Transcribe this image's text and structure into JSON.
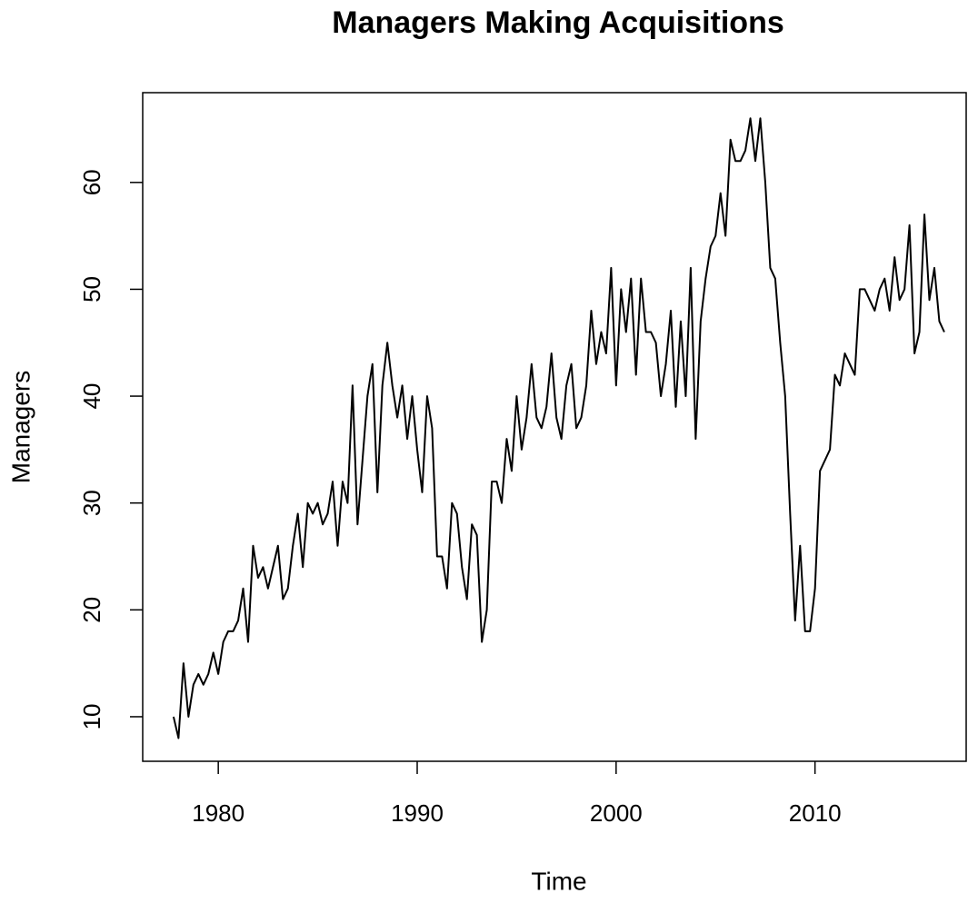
{
  "chart_data": {
    "type": "line",
    "title": "Managers Making Acquisitions",
    "x_label": "Time",
    "y_label": "Managers",
    "x": [
      1977.75,
      1978,
      1978.25,
      1978.5,
      1978.75,
      1979,
      1979.25,
      1979.5,
      1979.75,
      1980,
      1980.25,
      1980.5,
      1980.75,
      1981,
      1981.25,
      1981.5,
      1981.75,
      1982,
      1982.25,
      1982.5,
      1982.75,
      1983,
      1983.25,
      1983.5,
      1983.75,
      1984,
      1984.25,
      1984.5,
      1984.75,
      1985,
      1985.25,
      1985.5,
      1985.75,
      1986,
      1986.25,
      1986.5,
      1986.75,
      1987,
      1987.25,
      1987.5,
      1987.75,
      1988,
      1988.25,
      1988.5,
      1988.75,
      1989,
      1989.25,
      1989.5,
      1989.75,
      1990,
      1990.25,
      1990.5,
      1990.75,
      1991,
      1991.25,
      1991.5,
      1991.75,
      1992,
      1992.25,
      1992.5,
      1992.75,
      1993,
      1993.25,
      1993.5,
      1993.75,
      1994,
      1994.25,
      1994.5,
      1994.75,
      1995,
      1995.25,
      1995.5,
      1995.75,
      1996,
      1996.25,
      1996.5,
      1996.75,
      1997,
      1997.25,
      1997.5,
      1997.75,
      1998,
      1998.25,
      1998.5,
      1998.75,
      1999,
      1999.25,
      1999.5,
      1999.75,
      2000,
      2000.25,
      2000.5,
      2000.75,
      2001,
      2001.25,
      2001.5,
      2001.75,
      2002,
      2002.25,
      2002.5,
      2002.75,
      2003,
      2003.25,
      2003.5,
      2003.75,
      2004,
      2004.25,
      2004.5,
      2004.75,
      2005,
      2005.25,
      2005.5,
      2005.75,
      2006,
      2006.25,
      2006.5,
      2006.75,
      2007,
      2007.25,
      2007.5,
      2007.75,
      2008,
      2008.25,
      2008.5,
      2008.75,
      2009,
      2009.25,
      2009.5,
      2009.75,
      2010,
      2010.25,
      2010.5,
      2010.75,
      2011,
      2011.25,
      2011.5,
      2011.75,
      2012,
      2012.25,
      2012.5,
      2012.75,
      2013,
      2013.25,
      2013.5,
      2013.75,
      2014,
      2014.25,
      2014.5,
      2014.75,
      2015,
      2015.25,
      2015.5,
      2015.75,
      2016,
      2016.25,
      2016.5
    ],
    "series": [
      {
        "name": "Managers",
        "color": "#000000",
        "values": [
          10,
          8,
          15,
          10,
          13,
          14,
          13,
          14,
          16,
          14,
          17,
          18,
          18,
          19,
          22,
          17,
          26,
          23,
          24,
          22,
          24,
          26,
          21,
          22,
          26,
          29,
          24,
          30,
          29,
          30,
          28,
          29,
          32,
          26,
          32,
          30,
          41,
          28,
          34,
          40,
          43,
          31,
          41,
          45,
          41,
          38,
          41,
          36,
          40,
          35,
          31,
          40,
          37,
          25,
          25,
          22,
          30,
          29,
          24,
          21,
          28,
          27,
          17,
          20,
          32,
          32,
          30,
          36,
          33,
          40,
          35,
          38,
          43,
          38,
          37,
          39,
          44,
          38,
          36,
          41,
          43,
          37,
          38,
          41,
          48,
          43,
          46,
          44,
          52,
          41,
          50,
          46,
          51,
          42,
          51,
          46,
          46,
          45,
          40,
          43,
          48,
          39,
          47,
          40,
          52,
          36,
          47,
          51,
          54,
          55,
          59,
          55,
          64,
          62,
          62,
          63,
          66,
          62,
          66,
          60,
          52,
          51,
          45,
          40,
          29,
          19,
          26,
          18,
          18,
          22,
          33,
          34,
          35,
          42,
          41,
          44,
          43,
          42,
          50,
          50,
          49,
          48,
          50,
          51,
          48,
          53,
          49,
          50,
          56,
          44,
          46,
          57,
          49,
          52,
          47,
          46
        ]
      }
    ],
    "xlim": [
      1976.2,
      2017.6
    ],
    "xticks": [
      1980,
      1990,
      2000,
      2010
    ],
    "ylim": [
      5.83,
      68.4
    ],
    "yticks": [
      10,
      20,
      30,
      40,
      50,
      60
    ]
  }
}
